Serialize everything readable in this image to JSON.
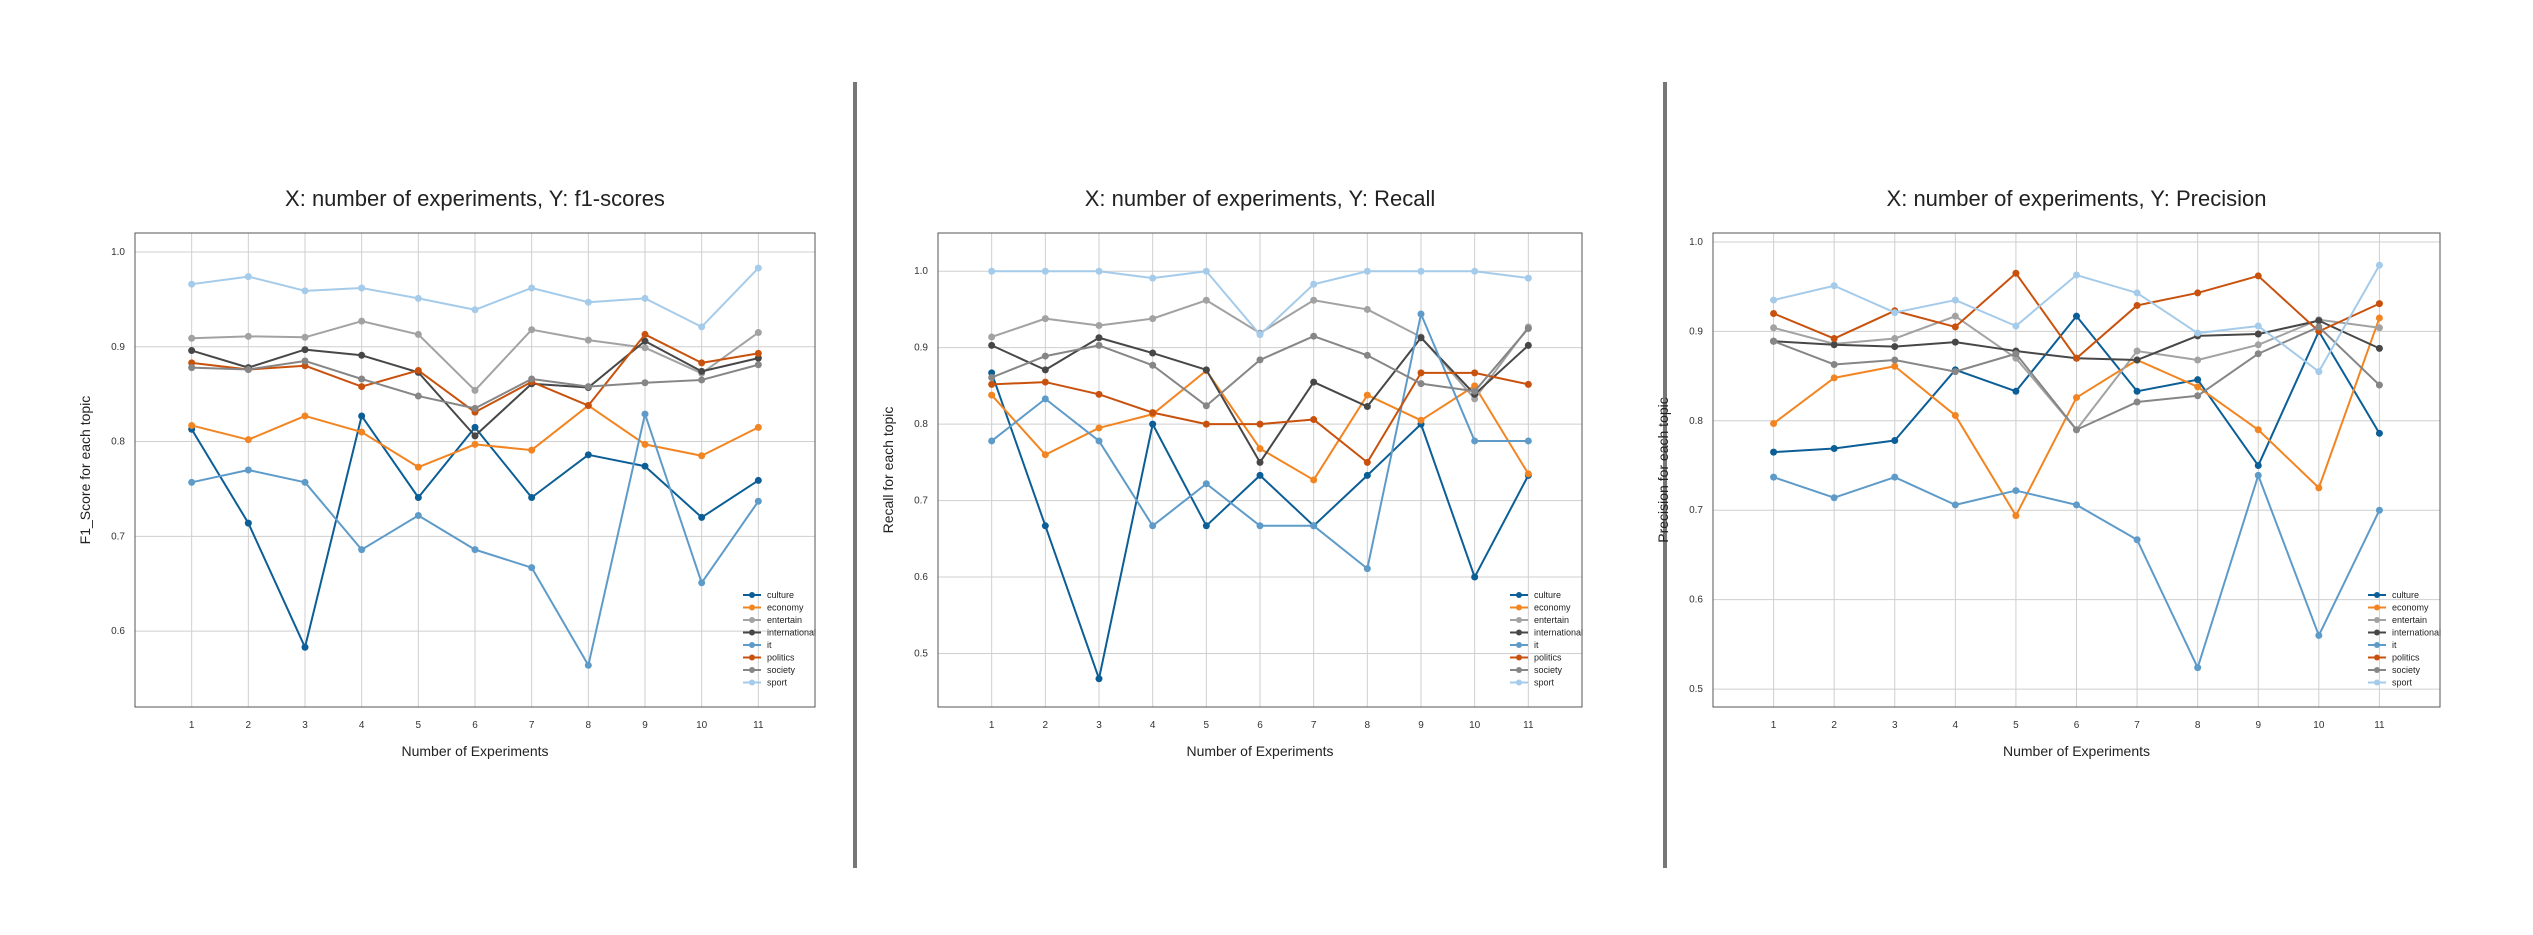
{
  "chart_data": [
    {
      "type": "line",
      "title": "X: number of experiments, Y: f1-scores",
      "xlabel": "Number of Experiments",
      "ylabel": "F1_Score for each topic",
      "x": [
        1,
        2,
        3,
        4,
        5,
        6,
        7,
        8,
        9,
        10,
        11
      ],
      "xlim": [
        0,
        12
      ],
      "ylim": [
        0.52,
        1.02
      ],
      "yticks": [
        0.6,
        0.7,
        0.8,
        0.9,
        1.0
      ],
      "ytick_labels": [
        "0.6",
        "0.7",
        "0.8",
        "0.9",
        "1.0"
      ],
      "grid": true,
      "legend_position": "lower-right",
      "series": [
        {
          "name": "culture",
          "values": [
            0.813,
            0.714,
            0.583,
            0.827,
            0.741,
            0.815,
            0.741,
            0.786,
            0.774,
            0.72,
            0.759
          ]
        },
        {
          "name": "economy",
          "values": [
            0.817,
            0.802,
            0.827,
            0.81,
            0.773,
            0.797,
            0.791,
            0.838,
            0.797,
            0.785,
            0.815
          ]
        },
        {
          "name": "entertain",
          "values": [
            0.909,
            0.911,
            0.91,
            0.927,
            0.913,
            0.854,
            0.918,
            0.907,
            0.899,
            0.872,
            0.915
          ]
        },
        {
          "name": "international",
          "values": [
            0.896,
            0.878,
            0.897,
            0.891,
            0.873,
            0.806,
            0.861,
            0.857,
            0.906,
            0.874,
            0.888
          ]
        },
        {
          "name": "it",
          "values": [
            0.757,
            0.77,
            0.757,
            0.686,
            0.722,
            0.686,
            0.667,
            0.564,
            0.829,
            0.651,
            0.737
          ]
        },
        {
          "name": "politics",
          "values": [
            0.883,
            0.876,
            0.88,
            0.858,
            0.875,
            0.831,
            0.863,
            0.838,
            0.913,
            0.883,
            0.893
          ]
        },
        {
          "name": "society",
          "values": [
            0.878,
            0.876,
            0.885,
            0.866,
            0.848,
            0.835,
            0.866,
            0.858,
            0.862,
            0.865,
            0.881
          ]
        },
        {
          "name": "sport",
          "values": [
            0.966,
            0.974,
            0.959,
            0.962,
            0.951,
            0.939,
            0.962,
            0.947,
            0.951,
            0.921,
            0.983
          ]
        }
      ]
    },
    {
      "type": "line",
      "title": "X: number of experiments, Y: Recall",
      "xlabel": "Number of Experiments",
      "ylabel": "Recall for each topic",
      "x": [
        1,
        2,
        3,
        4,
        5,
        6,
        7,
        8,
        9,
        10,
        11
      ],
      "xlim": [
        0,
        12
      ],
      "ylim": [
        0.43,
        1.05
      ],
      "yticks": [
        0.5,
        0.6,
        0.7,
        0.8,
        0.9,
        1.0
      ],
      "ytick_labels": [
        "0.5",
        "0.6",
        "0.7",
        "0.8",
        "0.9",
        "1.0"
      ],
      "grid": true,
      "legend_position": "lower-right",
      "series": [
        {
          "name": "culture",
          "values": [
            0.867,
            0.667,
            0.467,
            0.8,
            0.667,
            0.733,
            0.667,
            0.733,
            0.8,
            0.6,
            0.733
          ]
        },
        {
          "name": "economy",
          "values": [
            0.838,
            0.76,
            0.795,
            0.813,
            0.87,
            0.768,
            0.727,
            0.838,
            0.805,
            0.85,
            0.735
          ]
        },
        {
          "name": "entertain",
          "values": [
            0.914,
            0.938,
            0.929,
            0.938,
            0.962,
            0.919,
            0.962,
            0.95,
            0.914,
            0.833,
            0.927
          ]
        },
        {
          "name": "international",
          "values": [
            0.903,
            0.871,
            0.913,
            0.893,
            0.871,
            0.75,
            0.855,
            0.823,
            0.913,
            0.839,
            0.903
          ]
        },
        {
          "name": "it",
          "values": [
            0.778,
            0.833,
            0.778,
            0.667,
            0.722,
            0.667,
            0.667,
            0.611,
            0.944,
            0.778,
            0.778
          ]
        },
        {
          "name": "politics",
          "values": [
            0.852,
            0.855,
            0.839,
            0.815,
            0.8,
            0.8,
            0.806,
            0.75,
            0.867,
            0.867,
            0.852
          ]
        },
        {
          "name": "society",
          "values": [
            0.861,
            0.889,
            0.903,
            0.877,
            0.824,
            0.884,
            0.915,
            0.89,
            0.853,
            0.843,
            0.925
          ]
        },
        {
          "name": "sport",
          "values": [
            1.0,
            1.0,
            1.0,
            0.991,
            1.0,
            0.917,
            0.983,
            1.0,
            1.0,
            1.0,
            0.991
          ]
        }
      ]
    },
    {
      "type": "line",
      "title": "X: number of experiments, Y: Precision",
      "xlabel": "Number of Experiments",
      "ylabel": "Precision for each topic",
      "x": [
        1,
        2,
        3,
        4,
        5,
        6,
        7,
        8,
        9,
        10,
        11
      ],
      "xlim": [
        0,
        12
      ],
      "ylim": [
        0.48,
        1.01
      ],
      "yticks": [
        0.5,
        0.6,
        0.7,
        0.8,
        0.9,
        1.0
      ],
      "ytick_labels": [
        "0.5",
        "0.6",
        "0.7",
        "0.8",
        "0.9",
        "1.0"
      ],
      "grid": true,
      "legend_position": "lower-right",
      "series": [
        {
          "name": "culture",
          "values": [
            0.765,
            0.769,
            0.778,
            0.857,
            0.833,
            0.917,
            0.833,
            0.846,
            0.75,
            0.9,
            0.786
          ]
        },
        {
          "name": "economy",
          "values": [
            0.797,
            0.848,
            0.861,
            0.806,
            0.694,
            0.826,
            0.868,
            0.838,
            0.79,
            0.725,
            0.915
          ]
        },
        {
          "name": "entertain",
          "values": [
            0.904,
            0.886,
            0.892,
            0.917,
            0.87,
            0.79,
            0.878,
            0.868,
            0.885,
            0.913,
            0.904
          ]
        },
        {
          "name": "international",
          "values": [
            0.889,
            0.885,
            0.883,
            0.888,
            0.878,
            0.87,
            0.868,
            0.895,
            0.897,
            0.912,
            0.881
          ]
        },
        {
          "name": "it",
          "values": [
            0.737,
            0.714,
            0.737,
            0.706,
            0.722,
            0.706,
            0.667,
            0.524,
            0.739,
            0.56,
            0.7
          ]
        },
        {
          "name": "politics",
          "values": [
            0.92,
            0.892,
            0.923,
            0.905,
            0.965,
            0.87,
            0.929,
            0.943,
            0.962,
            0.9,
            0.931
          ]
        },
        {
          "name": "society",
          "values": [
            0.889,
            0.863,
            0.868,
            0.855,
            0.875,
            0.79,
            0.821,
            0.828,
            0.875,
            0.905,
            0.84
          ]
        },
        {
          "name": "sport",
          "values": [
            0.935,
            0.951,
            0.921,
            0.935,
            0.906,
            0.963,
            0.943,
            0.898,
            0.906,
            0.855,
            0.974
          ]
        }
      ]
    }
  ],
  "colors": {
    "culture": "#0b5e96",
    "economy": "#f28522",
    "entertain": "#a2a2a2",
    "international": "#474747",
    "it": "#5e9bc9",
    "politics": "#c8520d",
    "society": "#868686",
    "sport": "#a5cbea",
    "grid": "#cfcfcf",
    "axes": "#555555",
    "divider": "#777777"
  }
}
